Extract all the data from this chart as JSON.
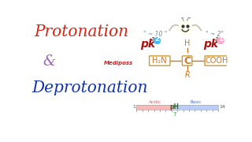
{
  "bg_color": "#ffffff",
  "protonation_text": "Protonation",
  "ampersand_text": "&",
  "deprotonation_text": "Deprotonation",
  "protonation_color": "#dd2211",
  "ampersand_color": "#9966bb",
  "deprotonation_color": "#1133aa",
  "pka_color": "#aa1111",
  "pka2_num_color": "#44bbff",
  "pka1_num_color": "#ffaacc",
  "approx_color": "#6688aa",
  "h2n_text": "H₂N",
  "c_text": "C",
  "cooh_text": "COOH",
  "h_text": "H",
  "r_text": "R",
  "struct_color": "#cc7722",
  "c_color": "#cc7722",
  "box_color": "#cc9933",
  "acid_label": "Acidic",
  "basic_label": "Basic",
  "ph_label": "pH",
  "bar_acid_color": "#f5bbbb",
  "bar_basic_color": "#bbccf5",
  "ph7_label": "7",
  "ph1_label": "1",
  "ph14_label": "14",
  "mediposs_color": "#cc2222",
  "line_color": "#cc7722"
}
